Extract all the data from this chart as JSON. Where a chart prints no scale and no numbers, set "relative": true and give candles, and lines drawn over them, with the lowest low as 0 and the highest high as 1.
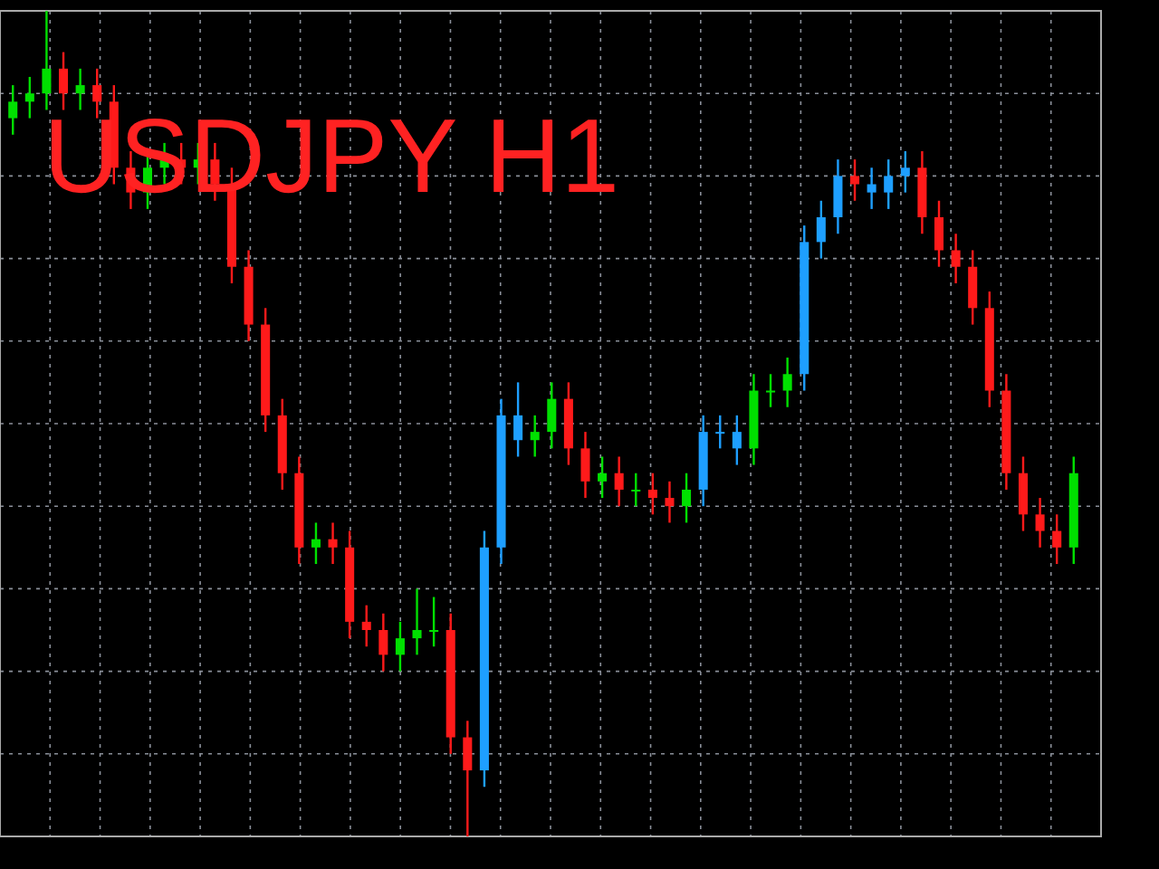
{
  "chart_data": {
    "type": "candlestick",
    "title": "USDJPY H1",
    "relative": true,
    "grid": true,
    "categories": [
      null,
      null,
      null,
      null,
      null,
      null,
      null,
      null,
      null,
      null,
      null,
      null,
      null,
      null,
      null,
      null,
      null,
      null,
      null,
      null,
      null,
      null,
      null,
      null,
      null,
      null,
      null,
      null,
      null,
      null,
      null,
      null,
      null,
      null,
      null,
      null,
      null,
      null,
      null,
      null,
      null,
      null,
      null,
      null,
      null,
      null,
      null,
      null,
      null,
      null,
      null,
      null,
      null,
      null,
      null,
      null,
      null,
      null,
      null,
      null,
      null,
      null,
      null,
      null
    ],
    "ohlc": [
      [
        0.87,
        0.91,
        0.85,
        0.89
      ],
      [
        0.89,
        0.92,
        0.87,
        0.9
      ],
      [
        0.9,
        1.0,
        0.88,
        0.93
      ],
      [
        0.93,
        0.95,
        0.88,
        0.9
      ],
      [
        0.9,
        0.93,
        0.88,
        0.91
      ],
      [
        0.91,
        0.93,
        0.87,
        0.89
      ],
      [
        0.89,
        0.91,
        0.79,
        0.81
      ],
      [
        0.81,
        0.83,
        0.76,
        0.78
      ],
      [
        0.78,
        0.83,
        0.76,
        0.81
      ],
      [
        0.81,
        0.84,
        0.79,
        0.82
      ],
      [
        0.82,
        0.84,
        0.79,
        0.81
      ],
      [
        0.81,
        0.84,
        0.79,
        0.82
      ],
      [
        0.82,
        0.84,
        0.77,
        0.79
      ],
      [
        0.79,
        0.81,
        0.67,
        0.69
      ],
      [
        0.69,
        0.71,
        0.6,
        0.62
      ],
      [
        0.62,
        0.64,
        0.49,
        0.51
      ],
      [
        0.51,
        0.53,
        0.42,
        0.44
      ],
      [
        0.44,
        0.46,
        0.33,
        0.35
      ],
      [
        0.35,
        0.38,
        0.33,
        0.36
      ],
      [
        0.36,
        0.38,
        0.33,
        0.35
      ],
      [
        0.35,
        0.37,
        0.24,
        0.26
      ],
      [
        0.26,
        0.28,
        0.23,
        0.25
      ],
      [
        0.25,
        0.27,
        0.2,
        0.22
      ],
      [
        0.22,
        0.26,
        0.2,
        0.24
      ],
      [
        0.24,
        0.3,
        0.22,
        0.25
      ],
      [
        0.25,
        0.29,
        0.23,
        0.25
      ],
      [
        0.25,
        0.27,
        0.1,
        0.12
      ],
      [
        0.12,
        0.14,
        0.0,
        0.08
      ],
      [
        0.08,
        0.37,
        0.06,
        0.35
      ],
      [
        0.35,
        0.53,
        0.33,
        0.51
      ],
      [
        0.51,
        0.55,
        0.46,
        0.48
      ],
      [
        0.48,
        0.51,
        0.46,
        0.49
      ],
      [
        0.49,
        0.55,
        0.47,
        0.53
      ],
      [
        0.53,
        0.55,
        0.45,
        0.47
      ],
      [
        0.47,
        0.49,
        0.41,
        0.43
      ],
      [
        0.43,
        0.46,
        0.41,
        0.44
      ],
      [
        0.44,
        0.46,
        0.4,
        0.42
      ],
      [
        0.42,
        0.44,
        0.4,
        0.42
      ],
      [
        0.42,
        0.44,
        0.39,
        0.41
      ],
      [
        0.41,
        0.43,
        0.38,
        0.4
      ],
      [
        0.4,
        0.44,
        0.38,
        0.42
      ],
      [
        0.42,
        0.51,
        0.4,
        0.49
      ],
      [
        0.49,
        0.51,
        0.47,
        0.49
      ],
      [
        0.49,
        0.51,
        0.45,
        0.47
      ],
      [
        0.47,
        0.56,
        0.45,
        0.54
      ],
      [
        0.54,
        0.56,
        0.52,
        0.54
      ],
      [
        0.54,
        0.58,
        0.52,
        0.56
      ],
      [
        0.56,
        0.74,
        0.54,
        0.72
      ],
      [
        0.72,
        0.77,
        0.7,
        0.75
      ],
      [
        0.75,
        0.82,
        0.73,
        0.8
      ],
      [
        0.8,
        0.82,
        0.77,
        0.79
      ],
      [
        0.79,
        0.81,
        0.76,
        0.78
      ],
      [
        0.78,
        0.82,
        0.76,
        0.8
      ],
      [
        0.8,
        0.83,
        0.78,
        0.81
      ],
      [
        0.81,
        0.83,
        0.73,
        0.75
      ],
      [
        0.75,
        0.77,
        0.69,
        0.71
      ],
      [
        0.71,
        0.73,
        0.67,
        0.69
      ],
      [
        0.69,
        0.71,
        0.62,
        0.64
      ],
      [
        0.64,
        0.66,
        0.52,
        0.54
      ],
      [
        0.54,
        0.56,
        0.42,
        0.44
      ],
      [
        0.44,
        0.46,
        0.37,
        0.39
      ],
      [
        0.39,
        0.41,
        0.35,
        0.37
      ],
      [
        0.37,
        0.39,
        0.33,
        0.35
      ],
      [
        0.35,
        0.46,
        0.33,
        0.44
      ]
    ],
    "colors": [
      "#00e000",
      "#00e000",
      "#00e000",
      "#ff1a1a",
      "#00e000",
      "#ff1a1a",
      "#ff1a1a",
      "#ff1a1a",
      "#00e000",
      "#00e000",
      "#ff1a1a",
      "#00e000",
      "#ff1a1a",
      "#ff1a1a",
      "#ff1a1a",
      "#ff1a1a",
      "#ff1a1a",
      "#ff1a1a",
      "#00e000",
      "#ff1a1a",
      "#ff1a1a",
      "#ff1a1a",
      "#ff1a1a",
      "#00e000",
      "#00e000",
      "#00e000",
      "#ff1a1a",
      "#ff1a1a",
      "#1e9fff",
      "#1e9fff",
      "#1e9fff",
      "#00e000",
      "#00e000",
      "#ff1a1a",
      "#ff1a1a",
      "#00e000",
      "#ff1a1a",
      "#00e000",
      "#ff1a1a",
      "#ff1a1a",
      "#00e000",
      "#1e9fff",
      "#1e9fff",
      "#1e9fff",
      "#00e000",
      "#00e000",
      "#00e000",
      "#1e9fff",
      "#1e9fff",
      "#1e9fff",
      "#ff1a1a",
      "#1e9fff",
      "#1e9fff",
      "#1e9fff",
      "#ff1a1a",
      "#ff1a1a",
      "#ff1a1a",
      "#ff1a1a",
      "#ff1a1a",
      "#ff1a1a",
      "#ff1a1a",
      "#ff1a1a",
      "#ff1a1a",
      "#00e000"
    ]
  }
}
